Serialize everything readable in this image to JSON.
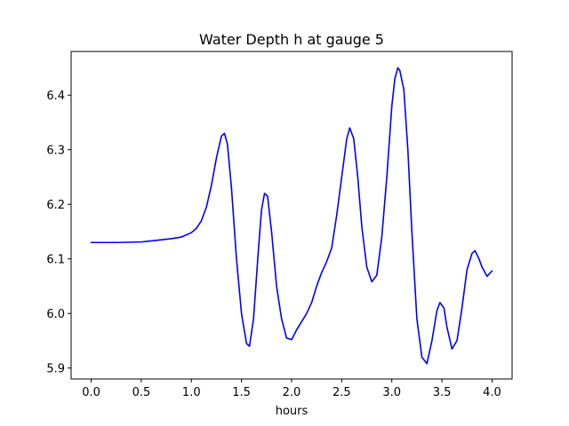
{
  "chart_data": {
    "type": "line",
    "title": "Water Depth h at gauge 5",
    "xlabel": "hours",
    "ylabel": "",
    "xlim": [
      -0.2,
      4.2
    ],
    "ylim": [
      5.88,
      6.48
    ],
    "x_ticks": [
      0.0,
      0.5,
      1.0,
      1.5,
      2.0,
      2.5,
      3.0,
      3.5,
      4.0
    ],
    "x_tick_labels": [
      "0.0",
      "0.5",
      "1.0",
      "1.5",
      "2.0",
      "2.5",
      "3.0",
      "3.5",
      "4.0"
    ],
    "y_ticks": [
      5.9,
      6.0,
      6.1,
      6.2,
      6.3,
      6.4
    ],
    "y_tick_labels": [
      "5.9",
      "6.0",
      "6.1",
      "6.2",
      "6.3",
      "6.4"
    ],
    "grid": false,
    "series": [
      {
        "color": "#0000ff",
        "x": [
          0.0,
          0.25,
          0.5,
          0.6,
          0.8,
          0.9,
          1.0,
          1.05,
          1.1,
          1.15,
          1.2,
          1.25,
          1.3,
          1.33,
          1.36,
          1.4,
          1.45,
          1.5,
          1.55,
          1.58,
          1.62,
          1.67,
          1.7,
          1.73,
          1.76,
          1.8,
          1.85,
          1.9,
          1.95,
          2.0,
          2.05,
          2.1,
          2.15,
          2.2,
          2.25,
          2.3,
          2.35,
          2.4,
          2.45,
          2.5,
          2.55,
          2.58,
          2.62,
          2.66,
          2.7,
          2.75,
          2.8,
          2.85,
          2.9,
          2.95,
          3.0,
          3.03,
          3.06,
          3.08,
          3.12,
          3.16,
          3.2,
          3.25,
          3.3,
          3.35,
          3.4,
          3.45,
          3.48,
          3.52,
          3.55,
          3.6,
          3.65,
          3.7,
          3.75,
          3.8,
          3.83,
          3.87,
          3.9,
          3.95,
          4.0
        ],
        "y": [
          6.13,
          6.13,
          6.131,
          6.133,
          6.137,
          6.14,
          6.148,
          6.156,
          6.17,
          6.195,
          6.235,
          6.285,
          6.325,
          6.33,
          6.31,
          6.23,
          6.1,
          6.0,
          5.945,
          5.94,
          5.99,
          6.12,
          6.19,
          6.22,
          6.215,
          6.15,
          6.05,
          5.99,
          5.955,
          5.952,
          5.97,
          5.985,
          6.0,
          6.02,
          6.05,
          6.075,
          6.095,
          6.12,
          6.18,
          6.25,
          6.32,
          6.34,
          6.32,
          6.25,
          6.16,
          6.085,
          6.058,
          6.07,
          6.14,
          6.25,
          6.38,
          6.43,
          6.45,
          6.445,
          6.41,
          6.3,
          6.15,
          5.99,
          5.92,
          5.908,
          5.95,
          6.005,
          6.02,
          6.01,
          5.975,
          5.935,
          5.95,
          6.01,
          6.08,
          6.11,
          6.115,
          6.1,
          6.085,
          6.068,
          6.078
        ]
      }
    ]
  }
}
